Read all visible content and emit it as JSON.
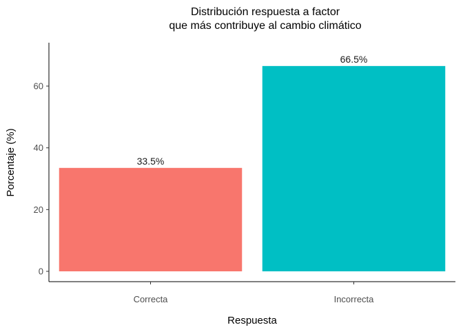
{
  "chart_data": {
    "type": "bar",
    "title": [
      "Distribución respuesta a factor",
      "que más contribuye al cambio climático"
    ],
    "xlabel": "Respuesta",
    "ylabel": "Porcentaje (%)",
    "categories": [
      "Correcta",
      "Incorrecta"
    ],
    "values": [
      33.5,
      66.5
    ],
    "data_labels": [
      "33.5%",
      "66.5%"
    ],
    "colors": [
      "#F8766D",
      "#00BFC4"
    ],
    "ylim": [
      0,
      73
    ],
    "yticks": [
      0,
      20,
      40,
      60
    ],
    "grid": false,
    "legend": "none"
  }
}
